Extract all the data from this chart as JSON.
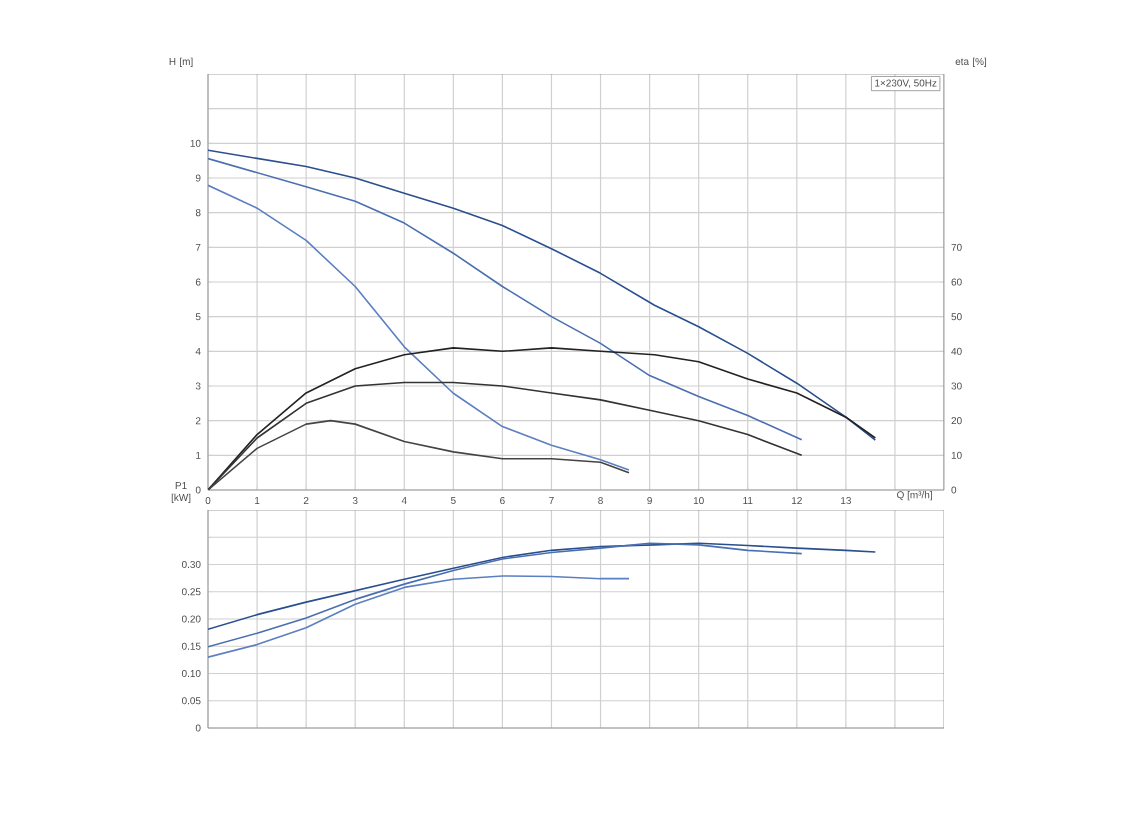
{
  "chart_data": [
    {
      "type": "line",
      "title": "1×230V, 50Hz",
      "xlabel": "Q [m³/h]",
      "ylabel": "H [m]",
      "y2label": "eta [%]",
      "grid": true,
      "marker": "none",
      "line_style": "solid",
      "xlim": [
        0,
        15
      ],
      "xticks": [
        0,
        1,
        2,
        3,
        4,
        5,
        6,
        7,
        8,
        9,
        10,
        11,
        12,
        13,
        {
          "value": 14,
          "label": null
        }
      ],
      "ylim": [
        0,
        12
      ],
      "yticks": [
        0,
        1,
        2,
        3,
        4,
        5,
        6,
        7,
        8,
        9,
        10,
        {
          "value": 11,
          "label": null
        }
      ],
      "y2lim": [
        0,
        120
      ],
      "y2ticks": [
        0,
        10,
        20,
        30,
        40,
        50,
        60,
        70
      ],
      "series": [
        {
          "color": "#2a4f8f",
          "x": [
            0,
            2,
            3,
            4,
            5,
            6,
            7,
            8,
            9.1,
            10,
            11,
            12,
            13,
            13.6
          ],
          "values": [
            9.8,
            9.33,
            9.0,
            8.56,
            8.13,
            7.63,
            6.96,
            6.25,
            5.33,
            4.71,
            3.94,
            3.08,
            2.1,
            1.44
          ]
        },
        {
          "color": "#4a6fb0",
          "x": [
            0,
            2,
            3,
            4,
            5,
            6,
            7,
            8,
            9,
            10,
            11,
            12.1
          ],
          "values": [
            9.56,
            8.75,
            8.33,
            7.7,
            6.83,
            5.87,
            5.0,
            4.23,
            3.3,
            2.7,
            2.15,
            1.45
          ]
        },
        {
          "color": "#5b7fc0",
          "x": [
            0,
            1,
            2,
            3,
            4,
            5,
            6,
            7,
            8,
            8.58
          ],
          "values": [
            8.79,
            8.13,
            7.2,
            5.87,
            4.13,
            2.79,
            1.83,
            1.29,
            0.87,
            0.58
          ]
        },
        {
          "color": "#222222",
          "axis": "y2",
          "x": [
            0,
            1,
            2,
            3,
            4,
            5,
            6,
            7,
            8,
            9.1,
            10,
            11,
            12,
            13,
            13.6
          ],
          "values": [
            0,
            16,
            28,
            35,
            39,
            41,
            40,
            41,
            40,
            39,
            37,
            32,
            28,
            21,
            15
          ]
        },
        {
          "color": "#333333",
          "axis": "y2",
          "x": [
            0,
            1,
            2,
            3,
            4,
            5,
            6,
            7,
            8,
            9,
            10,
            11,
            12.1
          ],
          "values": [
            0,
            15,
            25,
            30,
            31,
            31,
            30,
            28,
            26,
            23,
            20,
            16,
            10
          ]
        },
        {
          "color": "#444444",
          "axis": "y2",
          "x": [
            0,
            1,
            2,
            2.5,
            3,
            4,
            5,
            6,
            7,
            8,
            8.58
          ],
          "values": [
            0,
            12,
            19,
            20,
            19,
            14,
            11,
            9,
            9,
            8,
            5
          ]
        }
      ]
    },
    {
      "type": "line",
      "ylabel": "P1 [kW]",
      "grid": true,
      "marker": "none",
      "line_style": "solid",
      "tick_labels": "y",
      "xlim": [
        0,
        15
      ],
      "xticks": [
        0,
        1,
        2,
        3,
        4,
        5,
        6,
        7,
        8,
        9,
        10,
        11,
        12,
        13,
        14
      ],
      "ylim": [
        0,
        0.4
      ],
      "yticks": [
        {
          "value": 0,
          "label": "0"
        },
        {
          "value": 0.05,
          "label": "0.05"
        },
        {
          "value": 0.1,
          "label": "0.10"
        },
        {
          "value": 0.15,
          "label": "0.15"
        },
        {
          "value": 0.2,
          "label": "0.20"
        },
        {
          "value": 0.25,
          "label": "0.25"
        },
        {
          "value": 0.3,
          "label": "0.30"
        },
        {
          "value": 0.35,
          "label": null
        }
      ],
      "series": [
        {
          "color": "#2a4f8f",
          "x": [
            0,
            1,
            2,
            3,
            4,
            5,
            6,
            7,
            8,
            9.1,
            10,
            11,
            12,
            13,
            13.6
          ],
          "values": [
            0.181,
            0.208,
            0.231,
            0.252,
            0.273,
            0.293,
            0.313,
            0.326,
            0.333,
            0.336,
            0.339,
            0.335,
            0.33,
            0.326,
            0.323
          ]
        },
        {
          "color": "#4a6fb0",
          "x": [
            0,
            1,
            2,
            3,
            4,
            5,
            6,
            7,
            8,
            9,
            10,
            11,
            12.1
          ],
          "values": [
            0.149,
            0.174,
            0.202,
            0.236,
            0.264,
            0.289,
            0.31,
            0.322,
            0.33,
            0.339,
            0.336,
            0.326,
            0.32
          ]
        },
        {
          "color": "#5b7fc0",
          "x": [
            0,
            1,
            2,
            3,
            4,
            5,
            6,
            7,
            8,
            8.58
          ],
          "values": [
            0.13,
            0.153,
            0.184,
            0.227,
            0.258,
            0.273,
            0.279,
            0.278,
            0.274,
            0.274
          ]
        }
      ]
    }
  ]
}
